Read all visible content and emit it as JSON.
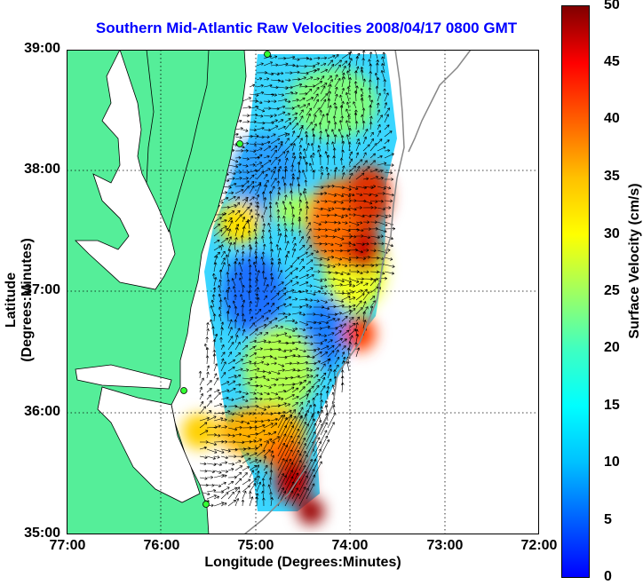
{
  "title": "Southern Mid-Atlantic Raw Velocities 2008/04/17 0800 GMT",
  "xaxis": {
    "label": "Longitude (Degrees:Minutes)",
    "ticks": [
      "77:00",
      "76:00",
      "75:00",
      "74:00",
      "73:00",
      "72:00"
    ]
  },
  "yaxis": {
    "label": "Latitude (Degrees:Minutes)",
    "ticks": [
      "39:00",
      "38:00",
      "37:00",
      "36:00",
      "35:00"
    ]
  },
  "colorbar": {
    "label": "Surface Velocity (cm/s)",
    "ticks": [
      "50",
      "45",
      "40",
      "35",
      "30",
      "25",
      "20",
      "15",
      "10",
      "5",
      "0"
    ],
    "range": [
      0,
      50
    ]
  },
  "extent": {
    "lon": [
      -77,
      -72
    ],
    "lat": [
      35,
      39
    ]
  },
  "colors": {
    "land": "#55ee99",
    "title": "#0000ff",
    "station": "#33ff33"
  }
}
